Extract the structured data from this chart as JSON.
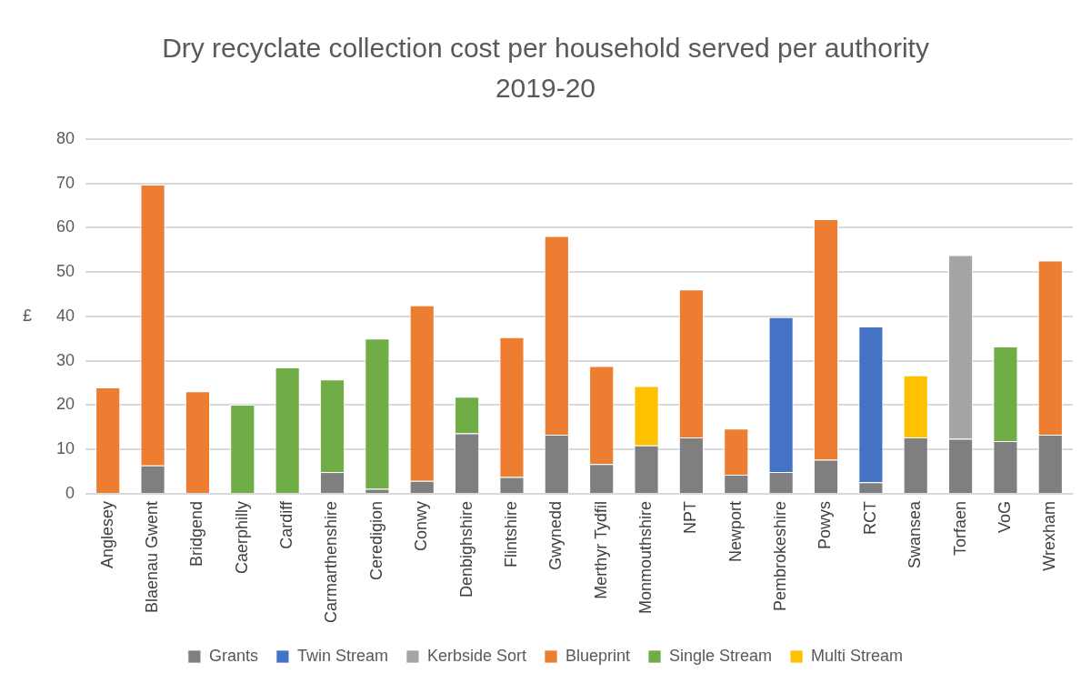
{
  "chart_data": {
    "type": "bar",
    "title": "Dry recyclate collection cost per household served per authority 2019-20",
    "ylabel": "£",
    "stacked": true,
    "grid": "y",
    "legend": "bottom",
    "categories": [
      "Anglesey",
      "Blaenau Gwent",
      "Bridgend",
      "Caerphilly",
      "Cardiff",
      "Carmarthenshire",
      "Ceredigion",
      "Conwy",
      "Denbighshire",
      "Flintshire",
      "Gwynedd",
      "Merthyr Tydfil",
      "Monmouthshire",
      "NPT",
      "Newport",
      "Pembrokeshire",
      "Powys",
      "RCT",
      "Swansea",
      "Torfaen",
      "VoG",
      "Wrexham"
    ],
    "ylim": [
      0,
      80
    ],
    "yticks": [
      0,
      10,
      20,
      30,
      40,
      50,
      60,
      70,
      80
    ],
    "series": [
      {
        "name": "Grants",
        "color": "#7f7f7f",
        "values": [
          null,
          6.4,
          null,
          null,
          null,
          4.9,
          1.1,
          2.9,
          13.6,
          3.8,
          13.3,
          6.7,
          10.9,
          12.7,
          4.3,
          4.9,
          7.7,
          2.6,
          12.7,
          12.4,
          11.9,
          13.3
        ]
      },
      {
        "name": "Twin Stream",
        "color": "#4472c4",
        "values": [
          null,
          null,
          null,
          null,
          null,
          null,
          null,
          null,
          null,
          null,
          null,
          null,
          null,
          null,
          null,
          34.9,
          null,
          35.1,
          null,
          null,
          null,
          null
        ]
      },
      {
        "name": "Kerbside Sort",
        "color": "#a5a5a5",
        "values": [
          null,
          null,
          null,
          null,
          null,
          null,
          null,
          null,
          null,
          null,
          null,
          null,
          null,
          null,
          null,
          null,
          null,
          null,
          null,
          41.4,
          null,
          null
        ]
      },
      {
        "name": "Blueprint",
        "color": "#ed7d31",
        "values": [
          24.0,
          63.3,
          23.1,
          null,
          null,
          null,
          null,
          39.6,
          null,
          31.5,
          44.8,
          22.1,
          null,
          33.4,
          10.4,
          null,
          54.2,
          null,
          null,
          null,
          null,
          39.3
        ]
      },
      {
        "name": "Single Stream",
        "color": "#70ad47",
        "values": [
          null,
          null,
          null,
          20.1,
          28.5,
          20.9,
          33.9,
          null,
          8.3,
          null,
          null,
          null,
          null,
          null,
          null,
          null,
          null,
          null,
          null,
          null,
          21.3,
          null
        ]
      },
      {
        "name": "Multi Stream",
        "color": "#ffc000",
        "values": [
          null,
          null,
          null,
          null,
          null,
          null,
          null,
          null,
          null,
          null,
          null,
          null,
          13.4,
          null,
          null,
          null,
          null,
          null,
          14.0,
          null,
          null,
          null
        ]
      }
    ]
  }
}
